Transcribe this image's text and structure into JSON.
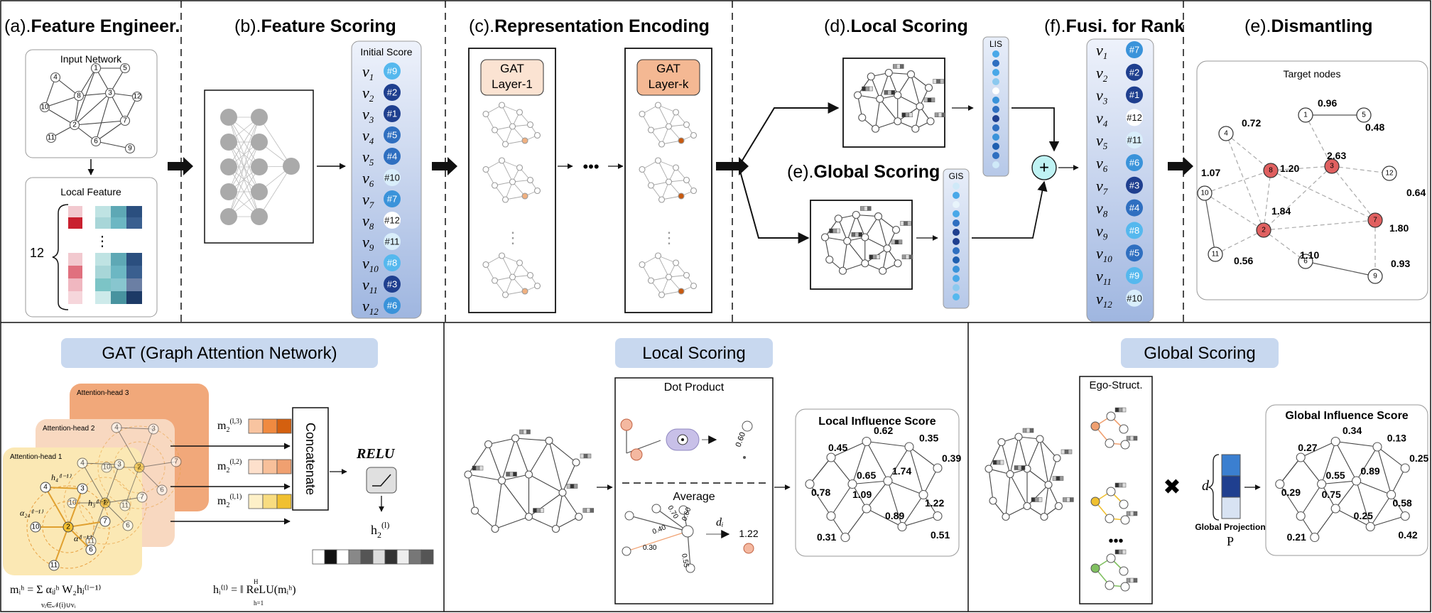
{
  "titles": {
    "a": {
      "pre": "(a).",
      "bold": "Feature Engineer."
    },
    "b": {
      "pre": "(b).",
      "bold": "Feature Scoring"
    },
    "c": {
      "pre": "(c).",
      "bold": "Representation Encoding"
    },
    "d": {
      "pre": "(d).",
      "bold": "Local Scoring"
    },
    "e_global": {
      "pre": "(e).",
      "bold": "Global Scoring"
    },
    "f": {
      "pre": "(f).",
      "bold": "Fusi. for Rank"
    },
    "e_dismantle": {
      "pre": "(e).",
      "bold": "Dismantling"
    }
  },
  "feature": {
    "input_network": "Input Network",
    "input_nodes": [
      "1",
      "2",
      "3",
      "4",
      "5",
      "6",
      "7",
      "8",
      "9",
      "10",
      "11",
      "12"
    ],
    "local_feature": "Local Feature",
    "dim": "12",
    "ellipsis": "⋮"
  },
  "initial_score": {
    "title": "Initial Score",
    "rows": [
      {
        "v": "v",
        "sub": "1",
        "rank": "#9"
      },
      {
        "v": "v",
        "sub": "2",
        "rank": "#2"
      },
      {
        "v": "v",
        "sub": "3",
        "rank": "#1"
      },
      {
        "v": "v",
        "sub": "4",
        "rank": "#5"
      },
      {
        "v": "v",
        "sub": "5",
        "rank": "#4"
      },
      {
        "v": "v",
        "sub": "6",
        "rank": "#10"
      },
      {
        "v": "v",
        "sub": "7",
        "rank": "#7"
      },
      {
        "v": "v",
        "sub": "8",
        "rank": "#12"
      },
      {
        "v": "v",
        "sub": "9",
        "rank": "#11"
      },
      {
        "v": "v",
        "sub": "10",
        "rank": "#8"
      },
      {
        "v": "v",
        "sub": "11",
        "rank": "#3"
      },
      {
        "v": "v",
        "sub": "12",
        "rank": "#6"
      }
    ]
  },
  "encoding": {
    "layer1": [
      "GAT",
      "Layer-1"
    ],
    "layerk": [
      "GAT",
      "Layer-k"
    ],
    "dots": "•••",
    "vdots": "⋮"
  },
  "lis": "LIS",
  "gis": "GIS",
  "plus": "+",
  "fusion": {
    "rows": [
      {
        "v": "v",
        "sub": "1",
        "rank": "#7"
      },
      {
        "v": "v",
        "sub": "2",
        "rank": "#2"
      },
      {
        "v": "v",
        "sub": "3",
        "rank": "#1"
      },
      {
        "v": "v",
        "sub": "4",
        "rank": "#12"
      },
      {
        "v": "v",
        "sub": "5",
        "rank": "#11"
      },
      {
        "v": "v",
        "sub": "6",
        "rank": "#6"
      },
      {
        "v": "v",
        "sub": "7",
        "rank": "#3"
      },
      {
        "v": "v",
        "sub": "8",
        "rank": "#4"
      },
      {
        "v": "v",
        "sub": "9",
        "rank": "#8"
      },
      {
        "v": "v",
        "sub": "10",
        "rank": "#5"
      },
      {
        "v": "v",
        "sub": "11",
        "rank": "#9"
      },
      {
        "v": "v",
        "sub": "12",
        "rank": "#10"
      }
    ]
  },
  "dismantling": {
    "title": "Target nodes",
    "nodes": [
      "1",
      "2",
      "3",
      "4",
      "5",
      "6",
      "7",
      "8",
      "9",
      "10",
      "11",
      "12"
    ],
    "scores": [
      "0.96",
      "0.72",
      "0.48",
      "2.63",
      "1.20",
      "1.07",
      "0.64",
      "1.84",
      "1.80",
      "1.10",
      "0.93",
      "0.56"
    ]
  },
  "gat": {
    "title": "GAT (Graph Attention Network)",
    "heads": [
      "Attention-head 3",
      "Attention-head 2",
      "Attention-head 1"
    ],
    "m_labels": [
      "m",
      "m",
      "m"
    ],
    "m_sups": [
      "(l,3)",
      "(l,2)",
      "(l,1)"
    ],
    "m_sub": "2",
    "concat": "Concatenate",
    "relu": "RELU",
    "h_out": "h",
    "h_out_sub": "2",
    "h_out_sup": "(l)",
    "formula1": "mᵢʰ = Σ αᵢⱼʰ W₂hⱼ⁽ˡ⁻¹⁾",
    "formula1_sub": "vⱼ∈𝒩(i)∪vᵢ",
    "formula2": "hᵢ⁽ˡ⁾ = ‖ ReLU(mᵢʰ)",
    "formula2_sub": "h=1",
    "formula2_sup": "H",
    "head_nodes": [
      "4",
      "3",
      "10",
      "2",
      "7",
      "6",
      "11"
    ],
    "head_labels": [
      "h₄⁽ˡ⁻¹⁾",
      "h₃⁽ˡ⁻¹⁾",
      "α₂₄⁽ˡ⁻¹⁾",
      "α⁽ˡ⁻¹⁾"
    ]
  },
  "local_scoring": {
    "title": "Local Scoring",
    "dot_product": "Dot Product",
    "dot_value": "0.60",
    "average": "Average",
    "avg_weights": [
      "0.40",
      "0.70",
      "0.60",
      "0.30",
      "0.55"
    ],
    "avg_symbol": "dᵢ",
    "avg_result": "1.22",
    "influence_title": "Local Influence Score",
    "scores": [
      "0.45",
      "0.62",
      "0.35",
      "0.39",
      "0.65",
      "1.74",
      "0.78",
      "1.09",
      "1.22",
      "0.89",
      "0.31",
      "0.51"
    ]
  },
  "global_scoring": {
    "title": "Global Scoring",
    "ego": "Ego-Struct.",
    "dots": "•••",
    "times": "✖",
    "d": "d",
    "projection": "Global Projection",
    "P": "P",
    "influence_title": "Global Influence Score",
    "scores": [
      "0.27",
      "0.34",
      "0.13",
      "0.25",
      "0.55",
      "0.89",
      "0.29",
      "0.75",
      "0.58",
      "0.25",
      "0.21",
      "0.42"
    ]
  },
  "colors": {
    "blue_dark": "#1f3f8f",
    "blue_mid": "#2f72c4",
    "blue_light": "#49a8e8",
    "node_red": "#e06060",
    "orange": "#f0b890",
    "title_bar": "#c8d8ef"
  }
}
